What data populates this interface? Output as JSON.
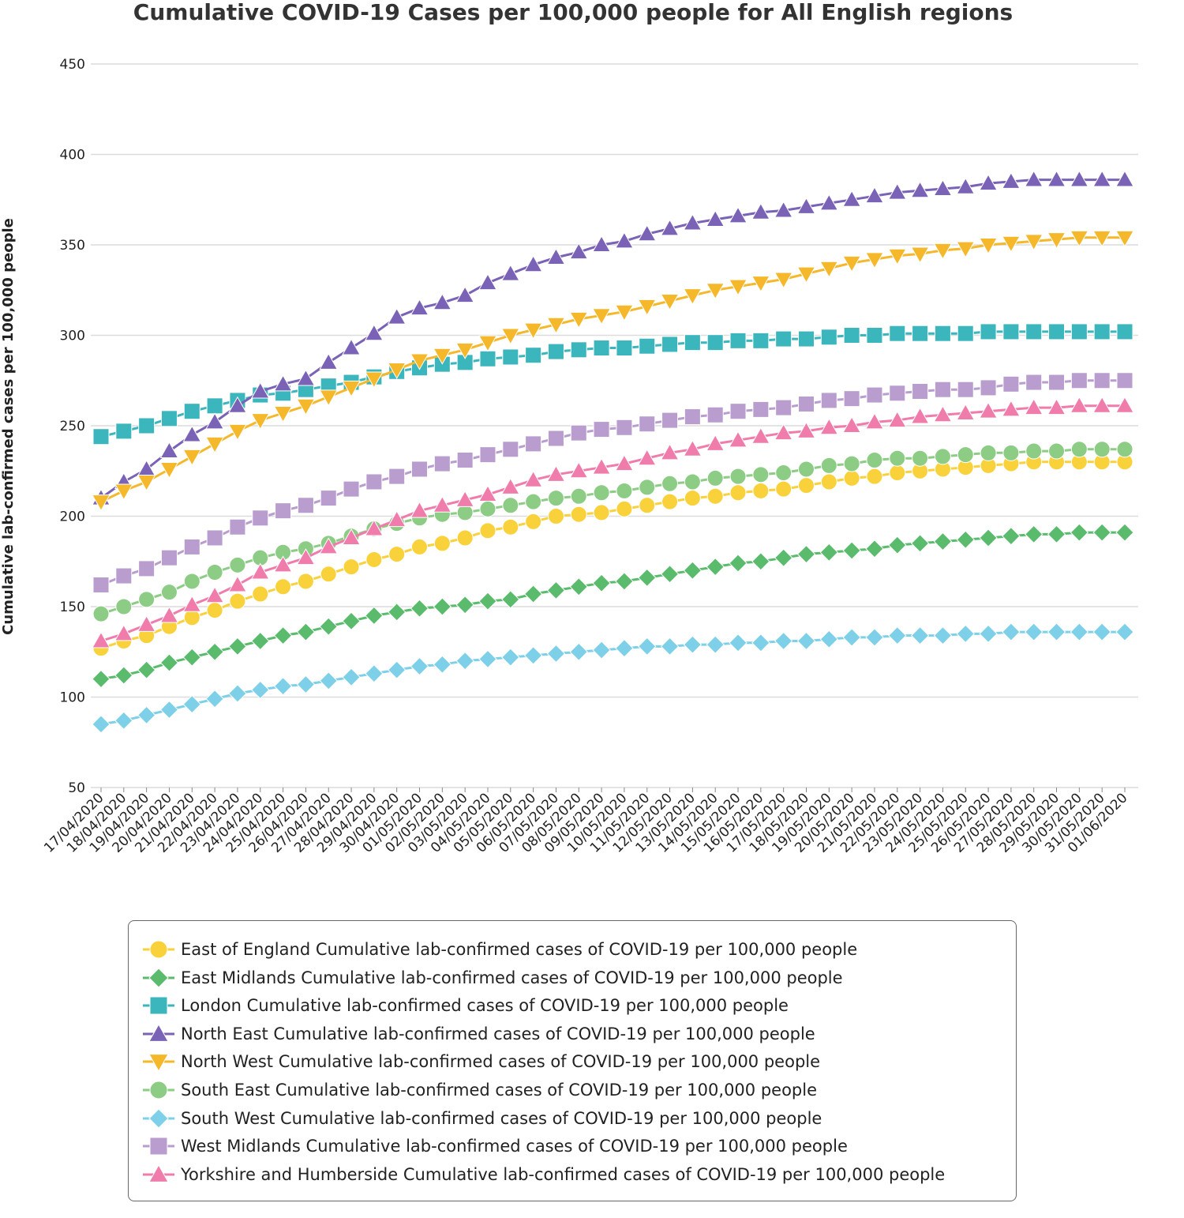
{
  "chart_data": {
    "type": "line",
    "title": "Cumulative COVID-19 Cases per 100,000 people for All English regions",
    "xlabel": "",
    "ylabel": "Cumulative lab-confirmed cases per 100,000 people",
    "ylim": [
      50,
      450
    ],
    "yticks": [
      50,
      100,
      150,
      200,
      250,
      300,
      350,
      400,
      450
    ],
    "grid": true,
    "legend_position": "bottom",
    "x": [
      "17/04/2020",
      "18/04/2020",
      "19/04/2020",
      "20/04/2020",
      "21/04/2020",
      "22/04/2020",
      "23/04/2020",
      "24/04/2020",
      "25/04/2020",
      "26/04/2020",
      "27/04/2020",
      "28/04/2020",
      "29/04/2020",
      "30/04/2020",
      "01/05/2020",
      "02/05/2020",
      "03/05/2020",
      "04/05/2020",
      "05/05/2020",
      "06/05/2020",
      "07/05/2020",
      "08/05/2020",
      "09/05/2020",
      "10/05/2020",
      "11/05/2020",
      "12/05/2020",
      "13/05/2020",
      "14/05/2020",
      "15/05/2020",
      "16/05/2020",
      "17/05/2020",
      "18/05/2020",
      "19/05/2020",
      "20/05/2020",
      "21/05/2020",
      "22/05/2020",
      "23/05/2020",
      "24/05/2020",
      "25/05/2020",
      "26/05/2020",
      "27/05/2020",
      "28/05/2020",
      "29/05/2020",
      "30/05/2020",
      "31/05/2020",
      "01/06/2020"
    ],
    "series": [
      {
        "name": "East of England Cumulative lab-confirmed cases of COVID-19 per 100,000 people",
        "color": "#f9d13a",
        "marker": "circle",
        "values": [
          127,
          131,
          134,
          139,
          144,
          148,
          153,
          157,
          161,
          164,
          168,
          172,
          176,
          179,
          183,
          185,
          188,
          192,
          194,
          197,
          200,
          201,
          202,
          204,
          206,
          208,
          210,
          211,
          213,
          214,
          215,
          217,
          219,
          221,
          222,
          224,
          225,
          226,
          227,
          228,
          229,
          230,
          230,
          230,
          230,
          230
        ]
      },
      {
        "name": "East Midlands Cumulative lab-confirmed cases of COVID-19 per 100,000 people",
        "color": "#5abb6d",
        "marker": "diamond",
        "values": [
          110,
          112,
          115,
          119,
          122,
          125,
          128,
          131,
          134,
          136,
          139,
          142,
          145,
          147,
          149,
          150,
          151,
          153,
          154,
          157,
          159,
          161,
          163,
          164,
          166,
          168,
          170,
          172,
          174,
          175,
          177,
          179,
          180,
          181,
          182,
          184,
          185,
          186,
          187,
          188,
          189,
          190,
          190,
          191,
          191,
          191
        ]
      },
      {
        "name": "London Cumulative lab-confirmed cases of COVID-19 per 100,000 people",
        "color": "#3bb6bd",
        "marker": "square",
        "values": [
          244,
          247,
          250,
          254,
          258,
          261,
          264,
          267,
          268,
          270,
          272,
          274,
          277,
          280,
          282,
          284,
          285,
          287,
          288,
          289,
          291,
          292,
          293,
          293,
          294,
          295,
          296,
          296,
          297,
          297,
          298,
          298,
          299,
          300,
          300,
          301,
          301,
          301,
          301,
          302,
          302,
          302,
          302,
          302,
          302,
          302
        ]
      },
      {
        "name": "North East Cumulative lab-confirmed cases of COVID-19 per 100,000 people",
        "color": "#7a62b6",
        "marker": "triangle-up",
        "values": [
          210,
          219,
          226,
          236,
          245,
          252,
          261,
          269,
          273,
          276,
          285,
          293,
          301,
          310,
          315,
          318,
          322,
          329,
          334,
          339,
          343,
          346,
          350,
          352,
          356,
          359,
          362,
          364,
          366,
          368,
          369,
          371,
          373,
          375,
          377,
          379,
          380,
          381,
          382,
          384,
          385,
          386,
          386,
          386,
          386,
          386
        ]
      },
      {
        "name": "North West Cumulative lab-confirmed cases of COVID-19 per 100,000 people",
        "color": "#f4b82a",
        "marker": "triangle-down",
        "values": [
          208,
          214,
          219,
          226,
          233,
          240,
          247,
          253,
          257,
          261,
          266,
          271,
          276,
          281,
          286,
          289,
          292,
          296,
          300,
          303,
          306,
          309,
          311,
          313,
          316,
          319,
          322,
          325,
          327,
          329,
          331,
          334,
          337,
          340,
          342,
          344,
          345,
          347,
          348,
          350,
          351,
          352,
          353,
          354,
          354,
          354
        ]
      },
      {
        "name": "South East Cumulative lab-confirmed cases of COVID-19 per 100,000 people",
        "color": "#8ccc85",
        "marker": "circle",
        "values": [
          146,
          150,
          154,
          158,
          164,
          169,
          173,
          177,
          180,
          182,
          185,
          189,
          193,
          196,
          199,
          201,
          202,
          204,
          206,
          208,
          210,
          211,
          213,
          214,
          216,
          218,
          219,
          221,
          222,
          223,
          224,
          226,
          228,
          229,
          231,
          232,
          232,
          233,
          234,
          235,
          235,
          236,
          236,
          237,
          237,
          237
        ]
      },
      {
        "name": "South West Cumulative lab-confirmed cases of COVID-19 per 100,000 people",
        "color": "#7dd0e8",
        "marker": "diamond",
        "values": [
          85,
          87,
          90,
          93,
          96,
          99,
          102,
          104,
          106,
          107,
          109,
          111,
          113,
          115,
          117,
          118,
          120,
          121,
          122,
          123,
          124,
          125,
          126,
          127,
          128,
          128,
          129,
          129,
          130,
          130,
          131,
          131,
          132,
          133,
          133,
          134,
          134,
          134,
          135,
          135,
          136,
          136,
          136,
          136,
          136,
          136
        ]
      },
      {
        "name": "West Midlands Cumulative lab-confirmed cases of COVID-19 per 100,000 people",
        "color": "#b89dce",
        "marker": "square",
        "values": [
          162,
          167,
          171,
          177,
          183,
          188,
          194,
          199,
          203,
          206,
          210,
          215,
          219,
          222,
          226,
          229,
          231,
          234,
          237,
          240,
          243,
          246,
          248,
          249,
          251,
          253,
          255,
          256,
          258,
          259,
          260,
          262,
          264,
          265,
          267,
          268,
          269,
          270,
          270,
          271,
          273,
          274,
          274,
          275,
          275,
          275
        ]
      },
      {
        "name": "Yorkshire and Humberside Cumulative lab-confirmed cases of COVID-19 per 100,000 people",
        "color": "#ef7cab",
        "marker": "triangle-up",
        "values": [
          131,
          135,
          140,
          145,
          151,
          156,
          162,
          169,
          173,
          177,
          183,
          188,
          193,
          198,
          203,
          206,
          209,
          212,
          216,
          220,
          223,
          225,
          227,
          229,
          232,
          235,
          237,
          240,
          242,
          244,
          246,
          247,
          249,
          250,
          252,
          253,
          255,
          256,
          257,
          258,
          259,
          260,
          260,
          261,
          261,
          261
        ]
      }
    ]
  }
}
